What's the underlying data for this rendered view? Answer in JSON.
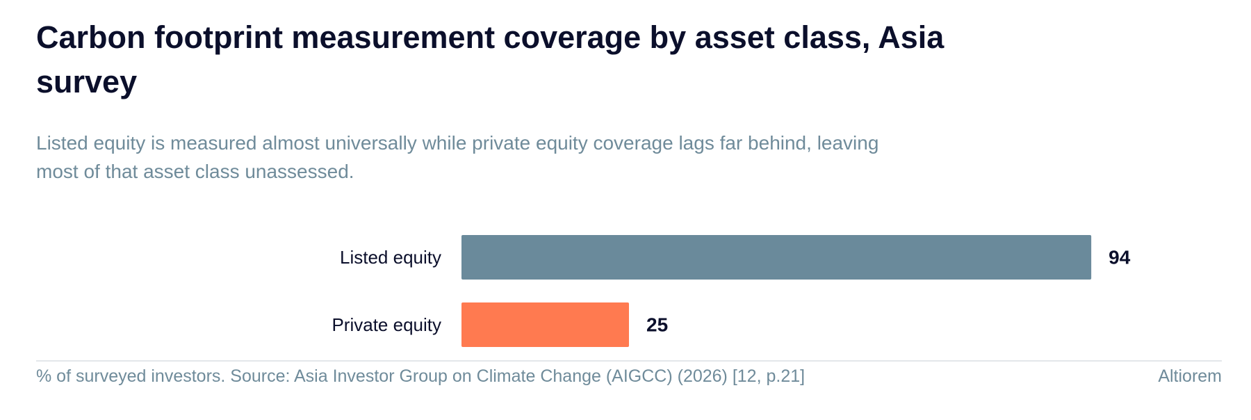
{
  "chart_data": {
    "type": "bar",
    "orientation": "horizontal",
    "title": "Carbon footprint measurement coverage by asset class, Asia survey",
    "subtitle": "Listed equity is measured almost universally while private equity coverage lags far behind, leaving most of that asset class unassessed.",
    "categories": [
      "Listed equity",
      "Private equity"
    ],
    "values": [
      94,
      25
    ],
    "colors": [
      "#6a8a9b",
      "#ff7a50"
    ],
    "xlim": [
      0,
      100
    ],
    "grid": false,
    "legend": "none",
    "xlabel": "",
    "ylabel": ""
  },
  "footer": {
    "note": "% of surveyed investors. Source: Asia Investor Group on Climate Change (AIGCC) (2026) [12, p.21]",
    "brand": "Altiorem"
  },
  "colors": {
    "title": "#0b0f2b",
    "muted": "#6f8b9a",
    "divider": "#e3e6ea"
  }
}
